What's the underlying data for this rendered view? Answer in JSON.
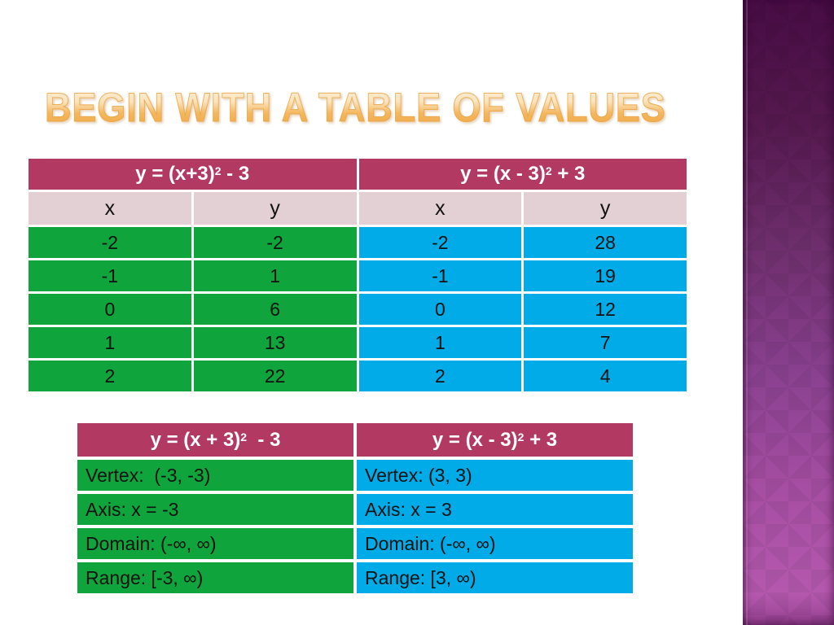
{
  "title": "BEGIN WITH A TABLE OF VALUES",
  "colors": {
    "header_maroon": "#b23a62",
    "subheader_pink": "#e2d0d5",
    "green": "#10a53c",
    "blue": "#00abe8",
    "title_gradient_top": "#fdf3e1",
    "title_gradient_bottom": "#efa53d",
    "sidebar_top": "#470c44",
    "sidebar_middle": "#8a4190",
    "sidebar_bottom": "#b458ae"
  },
  "tables": {
    "values": {
      "headers": [
        {
          "pre": "y = (x+3)",
          "sup": "2",
          "post": " - 3"
        },
        {
          "pre": "y = (x - 3)",
          "sup": "2",
          "post": " + 3"
        }
      ],
      "columns": [
        "x",
        "y",
        "x",
        "y"
      ],
      "rows": [
        [
          "-2",
          "-2",
          "-2",
          "28"
        ],
        [
          "-1",
          "1",
          "-1",
          "19"
        ],
        [
          "0",
          "6",
          "0",
          "12"
        ],
        [
          "1",
          "13",
          "1",
          "7"
        ],
        [
          "2",
          "22",
          "2",
          "4"
        ]
      ]
    },
    "properties": {
      "headers": [
        {
          "pre": "y = (x + 3)",
          "sup": "2",
          "post": "  - 3"
        },
        {
          "pre": "y = (x - 3)",
          "sup": "2",
          "post": " + 3"
        }
      ],
      "rows": [
        [
          "Vertex:  (-3, -3)",
          "Vertex: (3, 3)"
        ],
        [
          "Axis: x = -3",
          "Axis: x = 3"
        ],
        [
          "Domain: (-∞, ∞)",
          "Domain: (-∞, ∞)"
        ],
        [
          "Range: [-3, ∞)",
          "Range: [3, ∞)"
        ]
      ]
    }
  }
}
